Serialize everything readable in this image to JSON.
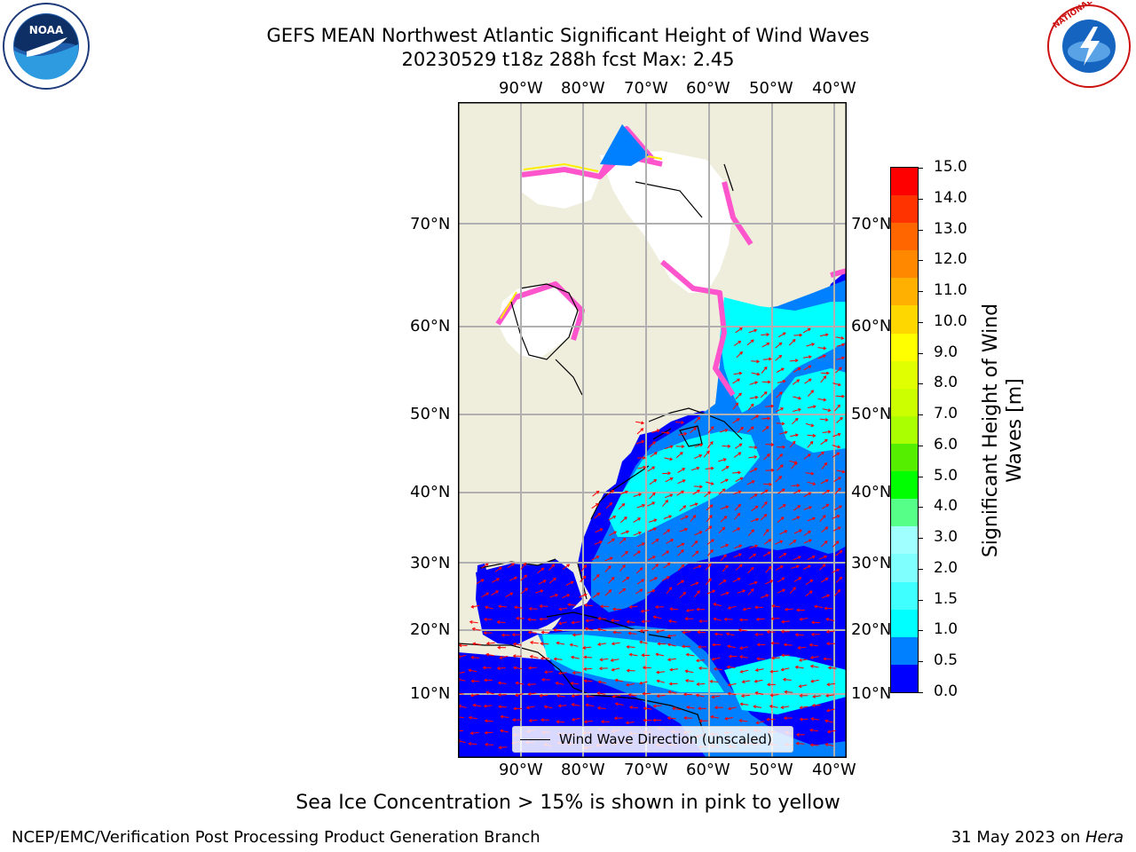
{
  "header": {
    "title_line1": "GEFS MEAN Northwest Atlantic Significant Height of Wind Waves",
    "title_line2": "20230529 t18z 288h fcst   Max: 2.45"
  },
  "logos": {
    "noaa_text": "NOAA",
    "nws_text": "NATIONAL WEATHER SERVICE"
  },
  "map": {
    "lon_labels": [
      "90°W",
      "80°W",
      "70°W",
      "60°W",
      "50°W",
      "40°W"
    ],
    "lat_labels": [
      "70°N",
      "60°N",
      "50°N",
      "40°N",
      "30°N",
      "20°N",
      "10°N"
    ],
    "legend_label": "Wind Wave Direction (unscaled)",
    "colors": {
      "land": "#efeedd",
      "ocean_low": "#0000ff",
      "ocean_mid": "#0080ff",
      "ocean_high": "#00ffff",
      "arrow": "#ff0000",
      "ice": "#ff66cc"
    }
  },
  "colorbar": {
    "title": "Significant Height of Wind Waves [m]",
    "ticks": [
      "15.0",
      "14.0",
      "13.0",
      "12.0",
      "11.0",
      "10.0",
      "9.0",
      "8.0",
      "7.0",
      "6.0",
      "5.0",
      "4.0",
      "3.0",
      "2.0",
      "1.5",
      "1.0",
      "0.5",
      "0.0"
    ],
    "colors": [
      "#0000ff",
      "#0080ff",
      "#00ffff",
      "#40ffff",
      "#80ffff",
      "#a0ffff",
      "#55ff88",
      "#00ff00",
      "#55ee00",
      "#aaff00",
      "#ccff00",
      "#e0ff00",
      "#ffff00",
      "#ffd700",
      "#ffb000",
      "#ff8800",
      "#ff6600",
      "#ff3300",
      "#ff0000"
    ]
  },
  "subtitle": "Sea Ice Concentration > 15% is shown in pink to yellow",
  "footer": {
    "left": "NCEP/EMC/Verification Post Processing Product Generation Branch",
    "right_date": "31 May 2023 on ",
    "right_host": "Hera"
  }
}
